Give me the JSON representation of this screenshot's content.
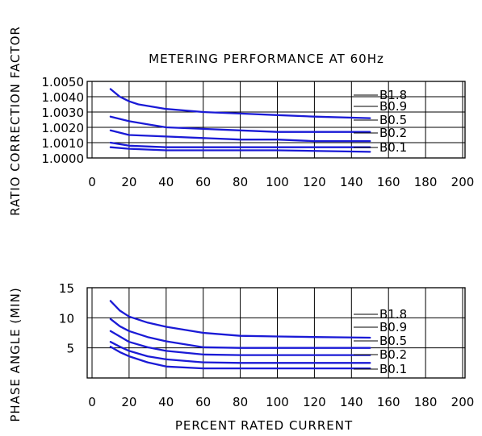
{
  "title": "METERING PERFORMANCE AT 60Hz",
  "xlabel": "PERCENT RATED CURRENT",
  "series_color": "#1a1ad6",
  "axis_color": "#000000",
  "chart_data": [
    {
      "type": "line",
      "ylabel": "RATIO CORRECTION FACTOR",
      "xlim": [
        0,
        200
      ],
      "ylim": [
        1.0,
        1.005
      ],
      "xticks": [
        0,
        20,
        40,
        60,
        80,
        100,
        120,
        140,
        160,
        180,
        200
      ],
      "xtick_labels": [
        "0",
        "20",
        "40",
        "60",
        "80",
        "100",
        "120",
        "140",
        "160",
        "180",
        "200"
      ],
      "yticks": [
        1.0,
        1.001,
        1.002,
        1.003,
        1.004,
        1.005
      ],
      "ytick_labels": [
        "1.0000",
        "1.0010",
        "1.0020",
        "1.0030",
        "1.0040",
        "1.0050"
      ],
      "grid": true,
      "series": [
        {
          "name": "B1.8",
          "x": [
            10,
            15,
            20,
            25,
            40,
            60,
            80,
            100,
            120,
            150
          ],
          "y": [
            1.0045,
            1.004,
            1.0037,
            1.0035,
            1.0032,
            1.003,
            1.0029,
            1.0028,
            1.0027,
            1.0026
          ]
        },
        {
          "name": "B0.9",
          "x": [
            10,
            20,
            30,
            40,
            60,
            80,
            100,
            120,
            150
          ],
          "y": [
            1.0027,
            1.0024,
            1.0022,
            1.002,
            1.0019,
            1.0018,
            1.0017,
            1.0017,
            1.0017
          ]
        },
        {
          "name": "B0.5",
          "x": [
            10,
            20,
            40,
            60,
            80,
            100,
            120,
            150
          ],
          "y": [
            1.0018,
            1.0015,
            1.0014,
            1.0013,
            1.0012,
            1.0012,
            1.0011,
            1.0011
          ]
        },
        {
          "name": "B0.2",
          "x": [
            10,
            15,
            20,
            40,
            60,
            80,
            100,
            150
          ],
          "y": [
            1.001,
            1.0009,
            1.0008,
            1.0007,
            1.0007,
            1.0007,
            1.0007,
            1.0007
          ]
        },
        {
          "name": "B0.1",
          "x": [
            10,
            20,
            40,
            60,
            80,
            100,
            150
          ],
          "y": [
            1.0007,
            1.0006,
            1.0005,
            1.0005,
            1.0005,
            1.0005,
            1.0004
          ]
        }
      ]
    },
    {
      "type": "line",
      "ylabel": "PHASE ANGLE (MIN)",
      "xlabel": "PERCENT RATED CURRENT",
      "xlim": [
        0,
        200
      ],
      "ylim": [
        0,
        15
      ],
      "xticks": [
        0,
        20,
        40,
        60,
        80,
        100,
        120,
        140,
        160,
        180,
        200
      ],
      "xtick_labels": [
        "0",
        "20",
        "40",
        "60",
        "80",
        "100",
        "120",
        "140",
        "160",
        "180",
        "200"
      ],
      "yticks": [
        5,
        10,
        15
      ],
      "ytick_labels": [
        "5",
        "10",
        "15"
      ],
      "grid": true,
      "series": [
        {
          "name": "B1.8",
          "x": [
            10,
            15,
            20,
            30,
            40,
            60,
            80,
            100,
            120,
            150
          ],
          "y": [
            12.8,
            11.2,
            10.2,
            9.2,
            8.5,
            7.5,
            7.0,
            6.9,
            6.8,
            6.7
          ]
        },
        {
          "name": "B0.9",
          "x": [
            10,
            15,
            20,
            30,
            40,
            60,
            80,
            100,
            150
          ],
          "y": [
            9.8,
            8.6,
            7.8,
            6.8,
            6.1,
            5.1,
            5.0,
            5.0,
            5.0
          ]
        },
        {
          "name": "B0.5",
          "x": [
            10,
            15,
            20,
            30,
            40,
            60,
            80,
            100,
            150
          ],
          "y": [
            7.8,
            6.9,
            6.0,
            5.1,
            4.5,
            3.9,
            3.8,
            3.8,
            3.8
          ]
        },
        {
          "name": "B0.2",
          "x": [
            10,
            15,
            20,
            30,
            40,
            60,
            80,
            150
          ],
          "y": [
            6.0,
            5.2,
            4.5,
            3.6,
            3.1,
            2.6,
            2.5,
            2.5
          ]
        },
        {
          "name": "B0.1",
          "x": [
            10,
            15,
            20,
            30,
            40,
            60,
            80,
            150
          ],
          "y": [
            5.2,
            4.3,
            3.6,
            2.6,
            1.9,
            1.6,
            1.6,
            1.6
          ]
        }
      ]
    }
  ]
}
